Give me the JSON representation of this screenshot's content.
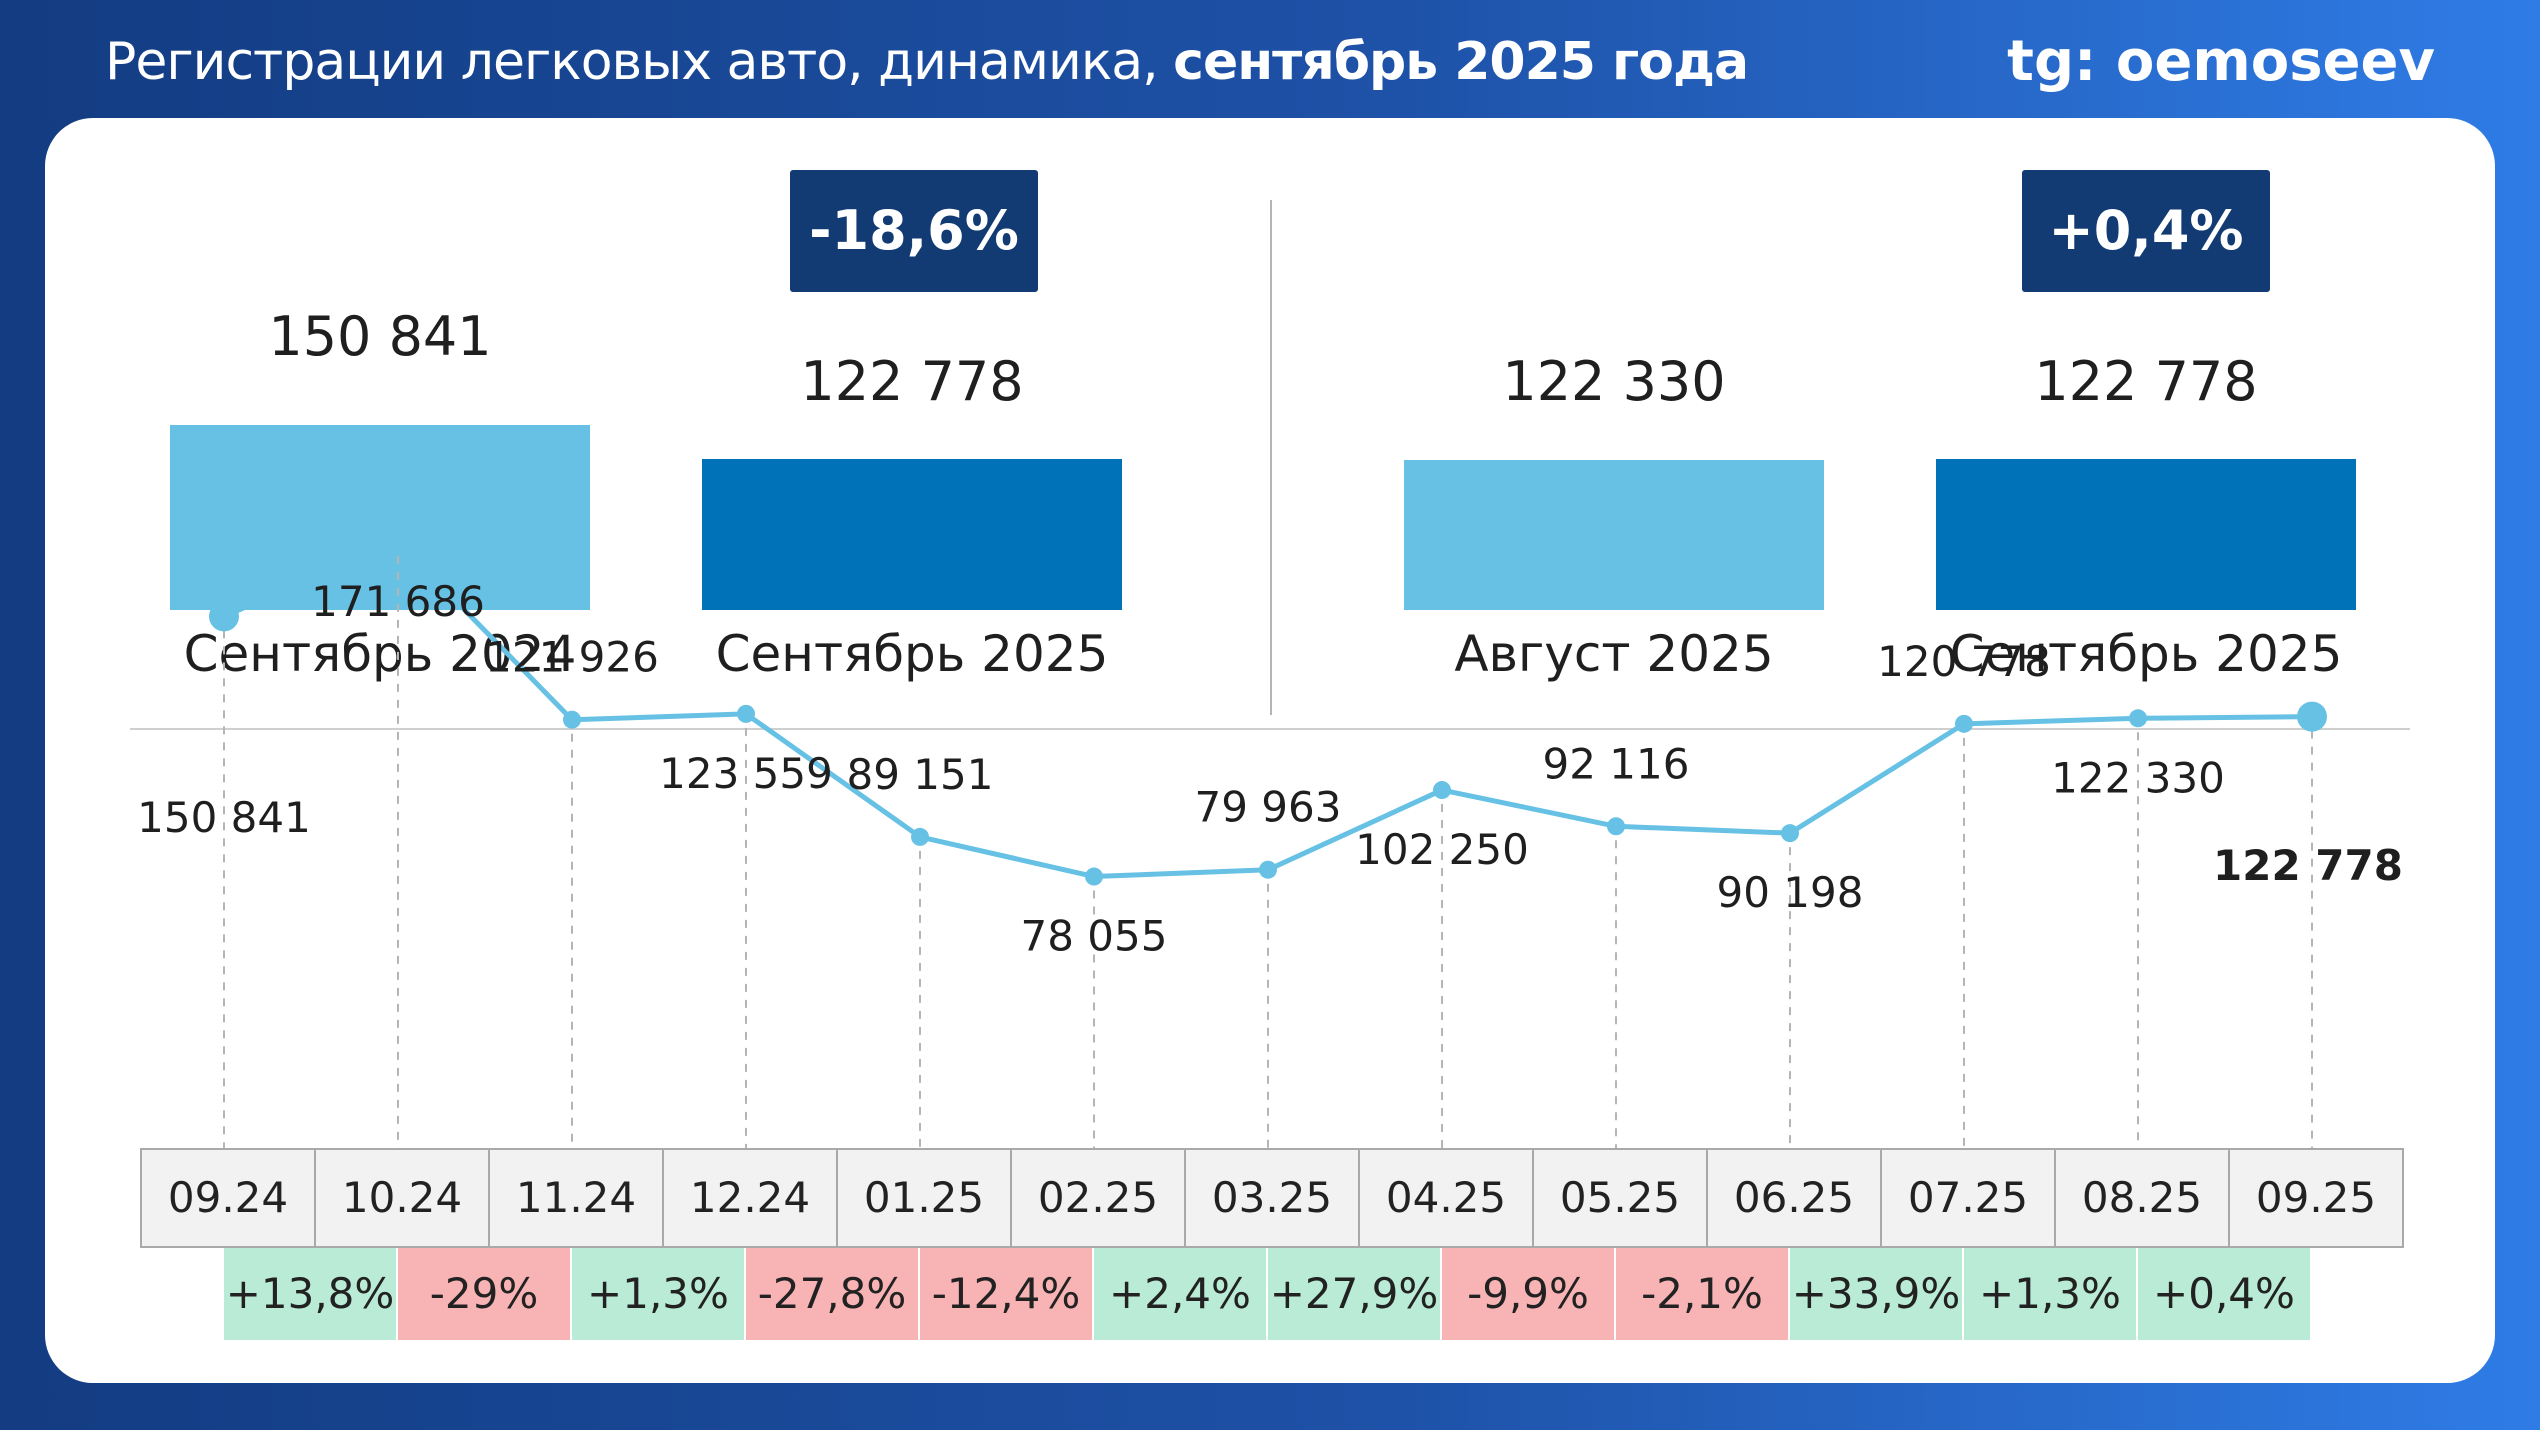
{
  "header": {
    "title_regular": "Регистрации легковых авто, динамика, ",
    "title_bold": "сентябрь 2025 года",
    "handle": "tg: oemoseev"
  },
  "colors": {
    "light_bar": "#66c1e4",
    "dark_bar": "#0072b8",
    "line": "#66c1e4",
    "badge": "#123a73",
    "positive": "#b9ebd7",
    "negative": "#f8b3b5"
  },
  "comparisons": [
    {
      "badge": "-18,6%",
      "bars": [
        {
          "label": "Сентябрь 2024",
          "value": 150841,
          "value_text": "150 841",
          "shade": "light"
        },
        {
          "label": "Сентябрь 2025",
          "value": 122778,
          "value_text": "122 778",
          "shade": "dark"
        }
      ]
    },
    {
      "badge": "+0,4%",
      "bars": [
        {
          "label": "Август 2025",
          "value": 122330,
          "value_text": "122 330",
          "shade": "light"
        },
        {
          "label": "Сентябрь 2025",
          "value": 122778,
          "value_text": "122 778",
          "shade": "dark"
        }
      ]
    }
  ],
  "chart_data": {
    "type": "line",
    "title": "Регистрации легковых авто, динамика, сентябрь 2025 года",
    "xlabel": "",
    "ylabel": "",
    "categories": [
      "09.24",
      "10.24",
      "11.24",
      "12.24",
      "01.25",
      "02.25",
      "03.25",
      "04.25",
      "05.25",
      "06.25",
      "07.25",
      "08.25",
      "09.25"
    ],
    "series": [
      {
        "name": "Регистрации",
        "values": [
          150841,
          171686,
          121926,
          123559,
          89151,
          78055,
          79963,
          102250,
          92116,
          90198,
          120778,
          122330,
          122778
        ],
        "value_labels": [
          "150 841",
          "171 686",
          "121 926",
          "123 559",
          "89 151",
          "78 055",
          "79 963",
          "102 250",
          "92 116",
          "90 198",
          "120 778",
          "122 330",
          "122 778"
        ]
      }
    ],
    "month_over_month": [
      "+13,8%",
      "-29%",
      "+1,3%",
      "-27,8%",
      "-12,4%",
      "+2,4%",
      "+27,9%",
      "-9,9%",
      "-2,1%",
      "+33,9%",
      "+1,3%",
      "+0,4%"
    ],
    "ylim": [
      60000,
      180000
    ],
    "grid": false,
    "legend": "none"
  }
}
